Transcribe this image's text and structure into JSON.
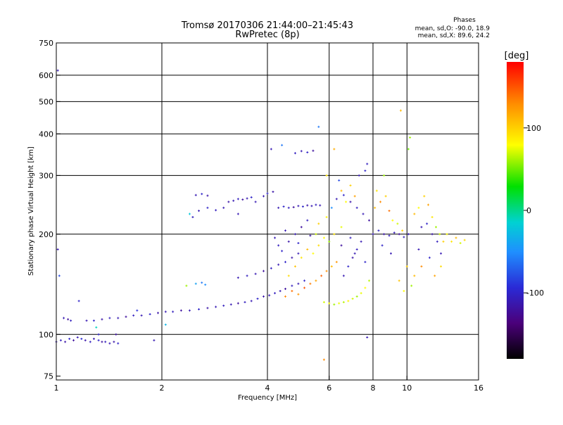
{
  "chart_data": {
    "type": "scatter",
    "title": "Tromsø 20170306 21:44:00–21:45:43",
    "subtitle": "RwPretec (8p)",
    "xlabel": "Frequency [MHz]",
    "ylabel": "Stationary phase Virtual Height [km]",
    "x_scale": "log",
    "y_scale": "log",
    "xlim": [
      1,
      16
    ],
    "ylim": [
      73,
      750
    ],
    "x_ticks": [
      {
        "value": 1,
        "label": "1"
      },
      {
        "value": 2,
        "label": "2"
      },
      {
        "value": 4,
        "label": "4"
      },
      {
        "value": 6,
        "label": "6"
      },
      {
        "value": 8,
        "label": "8"
      },
      {
        "value": 10,
        "label": "10"
      },
      {
        "value": 16,
        "label": "16"
      }
    ],
    "y_ticks": [
      {
        "value": 75,
        "label": "75"
      },
      {
        "value": 100,
        "label": "100"
      },
      {
        "value": 200,
        "label": "200"
      },
      {
        "value": 300,
        "label": "300"
      },
      {
        "value": 400,
        "label": "400"
      },
      {
        "value": 500,
        "label": "500"
      },
      {
        "value": 600,
        "label": "600"
      },
      {
        "value": 750,
        "label": "750"
      }
    ],
    "grid_x": [
      2,
      4,
      6,
      8,
      10
    ],
    "grid_y": [
      100,
      200,
      300,
      400,
      500,
      600
    ],
    "grid": true,
    "colorbar": {
      "label": "[deg]",
      "range": [
        -180,
        180
      ],
      "ticks": [
        {
          "value": 100,
          "label": "100"
        },
        {
          "value": 0,
          "label": "0"
        },
        {
          "value": -100,
          "label": "-100"
        }
      ]
    },
    "phase_stats": {
      "heading": "Phases",
      "line1": "mean, sd,O: -90.0, 18.9",
      "line2": "mean, sd,X: 89.6, 24.2"
    },
    "points": [
      {
        "f": 1.0,
        "h": 95,
        "p": -110
      },
      {
        "f": 1.03,
        "h": 96,
        "p": -105
      },
      {
        "f": 1.06,
        "h": 95,
        "p": -115
      },
      {
        "f": 1.09,
        "h": 97,
        "p": -100
      },
      {
        "f": 1.12,
        "h": 96,
        "p": -120
      },
      {
        "f": 1.15,
        "h": 98,
        "p": -110
      },
      {
        "f": 1.18,
        "h": 97,
        "p": -95
      },
      {
        "f": 1.21,
        "h": 96,
        "p": -115
      },
      {
        "f": 1.25,
        "h": 95,
        "p": -105
      },
      {
        "f": 1.28,
        "h": 97,
        "p": -110
      },
      {
        "f": 1.32,
        "h": 96,
        "p": -100
      },
      {
        "f": 1.35,
        "h": 95,
        "p": -120
      },
      {
        "f": 1.38,
        "h": 95,
        "p": -105
      },
      {
        "f": 1.42,
        "h": 94,
        "p": -110
      },
      {
        "f": 1.46,
        "h": 95,
        "p": -115
      },
      {
        "f": 1.5,
        "h": 94,
        "p": -100
      },
      {
        "f": 1.05,
        "h": 112,
        "p": -110
      },
      {
        "f": 1.08,
        "h": 111,
        "p": -120
      },
      {
        "f": 1.1,
        "h": 110,
        "p": -105
      },
      {
        "f": 1.22,
        "h": 110,
        "p": -110
      },
      {
        "f": 1.28,
        "h": 110,
        "p": -100
      },
      {
        "f": 1.35,
        "h": 111,
        "p": -115
      },
      {
        "f": 1.42,
        "h": 112,
        "p": -105
      },
      {
        "f": 1.5,
        "h": 112,
        "p": -110
      },
      {
        "f": 1.58,
        "h": 113,
        "p": -120
      },
      {
        "f": 1.66,
        "h": 114,
        "p": -105
      },
      {
        "f": 1.75,
        "h": 114,
        "p": -110
      },
      {
        "f": 1.85,
        "h": 115,
        "p": -100
      },
      {
        "f": 1.95,
        "h": 116,
        "p": -115
      },
      {
        "f": 2.05,
        "h": 117,
        "p": -110
      },
      {
        "f": 2.15,
        "h": 117,
        "p": -105
      },
      {
        "f": 2.27,
        "h": 118,
        "p": -120
      },
      {
        "f": 2.4,
        "h": 118,
        "p": -110
      },
      {
        "f": 2.55,
        "h": 119,
        "p": -100
      },
      {
        "f": 2.7,
        "h": 120,
        "p": -115
      },
      {
        "f": 2.85,
        "h": 121,
        "p": -110
      },
      {
        "f": 3.0,
        "h": 122,
        "p": -105
      },
      {
        "f": 3.15,
        "h": 123,
        "p": -110
      },
      {
        "f": 3.3,
        "h": 124,
        "p": -120
      },
      {
        "f": 3.45,
        "h": 125,
        "p": -105
      },
      {
        "f": 3.6,
        "h": 126,
        "p": -110
      },
      {
        "f": 3.75,
        "h": 128,
        "p": -100
      },
      {
        "f": 3.9,
        "h": 130,
        "p": -115
      },
      {
        "f": 4.05,
        "h": 131,
        "p": -110
      },
      {
        "f": 4.2,
        "h": 133,
        "p": -105
      },
      {
        "f": 4.35,
        "h": 135,
        "p": -110
      },
      {
        "f": 4.5,
        "h": 137,
        "p": -120
      },
      {
        "f": 4.7,
        "h": 140,
        "p": -105
      },
      {
        "f": 4.9,
        "h": 142,
        "p": -110
      },
      {
        "f": 5.1,
        "h": 145,
        "p": -100
      },
      {
        "f": 1.16,
        "h": 126,
        "p": -100
      },
      {
        "f": 1.3,
        "h": 105,
        "p": -10
      },
      {
        "f": 1.7,
        "h": 118,
        "p": -90
      },
      {
        "f": 1.48,
        "h": 100,
        "p": -120
      },
      {
        "f": 2.5,
        "h": 142,
        "p": -40
      },
      {
        "f": 2.6,
        "h": 143,
        "p": -60
      },
      {
        "f": 2.66,
        "h": 141,
        "p": -50
      },
      {
        "f": 3.3,
        "h": 148,
        "p": -110
      },
      {
        "f": 3.5,
        "h": 150,
        "p": -105
      },
      {
        "f": 3.7,
        "h": 152,
        "p": -110
      },
      {
        "f": 3.9,
        "h": 155,
        "p": -120
      },
      {
        "f": 4.1,
        "h": 158,
        "p": -105
      },
      {
        "f": 4.3,
        "h": 162,
        "p": -110
      },
      {
        "f": 4.5,
        "h": 165,
        "p": -100
      },
      {
        "f": 4.7,
        "h": 170,
        "p": -115
      },
      {
        "f": 4.9,
        "h": 175,
        "p": -110
      },
      {
        "f": 2.55,
        "h": 235,
        "p": -110
      },
      {
        "f": 2.7,
        "h": 240,
        "p": -100
      },
      {
        "f": 2.85,
        "h": 236,
        "p": -105
      },
      {
        "f": 3.0,
        "h": 240,
        "p": -110
      },
      {
        "f": 3.1,
        "h": 250,
        "p": -115
      },
      {
        "f": 3.2,
        "h": 252,
        "p": -110
      },
      {
        "f": 3.3,
        "h": 255,
        "p": -105
      },
      {
        "f": 3.4,
        "h": 254,
        "p": -120
      },
      {
        "f": 3.5,
        "h": 256,
        "p": -110
      },
      {
        "f": 3.6,
        "h": 258,
        "p": -100
      },
      {
        "f": 2.4,
        "h": 230,
        "p": -20
      },
      {
        "f": 2.45,
        "h": 225,
        "p": -105
      },
      {
        "f": 2.5,
        "h": 262,
        "p": -110
      },
      {
        "f": 2.6,
        "h": 264,
        "p": -100
      },
      {
        "f": 2.7,
        "h": 261,
        "p": -115
      },
      {
        "f": 4.3,
        "h": 240,
        "p": -110
      },
      {
        "f": 4.45,
        "h": 242,
        "p": -100
      },
      {
        "f": 4.6,
        "h": 240,
        "p": -105
      },
      {
        "f": 4.75,
        "h": 241,
        "p": -120
      },
      {
        "f": 4.9,
        "h": 243,
        "p": -110
      },
      {
        "f": 5.05,
        "h": 242,
        "p": -100
      },
      {
        "f": 5.2,
        "h": 244,
        "p": -115
      },
      {
        "f": 5.35,
        "h": 243,
        "p": -110
      },
      {
        "f": 5.5,
        "h": 245,
        "p": -105
      },
      {
        "f": 5.65,
        "h": 244,
        "p": -110
      },
      {
        "f": 3.9,
        "h": 260,
        "p": -110
      },
      {
        "f": 4.0,
        "h": 265,
        "p": -100
      },
      {
        "f": 4.15,
        "h": 268,
        "p": -115
      },
      {
        "f": 4.8,
        "h": 350,
        "p": -105
      },
      {
        "f": 5.0,
        "h": 355,
        "p": -110
      },
      {
        "f": 5.2,
        "h": 352,
        "p": -100
      },
      {
        "f": 5.4,
        "h": 356,
        "p": -120
      },
      {
        "f": 5.6,
        "h": 420,
        "p": -60
      },
      {
        "f": 4.1,
        "h": 360,
        "p": -110
      },
      {
        "f": 4.2,
        "h": 195,
        "p": -110
      },
      {
        "f": 4.3,
        "h": 185,
        "p": -105
      },
      {
        "f": 4.4,
        "h": 178,
        "p": -100
      },
      {
        "f": 4.6,
        "h": 190,
        "p": -115
      },
      {
        "f": 4.8,
        "h": 200,
        "p": -110
      },
      {
        "f": 5.0,
        "h": 210,
        "p": -120
      },
      {
        "f": 5.2,
        "h": 220,
        "p": -105
      },
      {
        "f": 4.5,
        "h": 205,
        "p": -110
      },
      {
        "f": 4.9,
        "h": 188,
        "p": -100
      },
      {
        "f": 5.3,
        "h": 198,
        "p": -115
      },
      {
        "f": 4.5,
        "h": 130,
        "p": 130
      },
      {
        "f": 4.7,
        "h": 135,
        "p": 140
      },
      {
        "f": 4.9,
        "h": 132,
        "p": 125
      },
      {
        "f": 5.1,
        "h": 138,
        "p": 150
      },
      {
        "f": 5.3,
        "h": 142,
        "p": 135
      },
      {
        "f": 5.5,
        "h": 145,
        "p": 120
      },
      {
        "f": 5.7,
        "h": 150,
        "p": 145
      },
      {
        "f": 5.9,
        "h": 155,
        "p": 130
      },
      {
        "f": 6.1,
        "h": 160,
        "p": 110
      },
      {
        "f": 6.3,
        "h": 165,
        "p": 125
      },
      {
        "f": 4.6,
        "h": 150,
        "p": 95
      },
      {
        "f": 4.8,
        "h": 160,
        "p": 105
      },
      {
        "f": 5.0,
        "h": 170,
        "p": 90
      },
      {
        "f": 5.2,
        "h": 180,
        "p": 110
      },
      {
        "f": 5.4,
        "h": 175,
        "p": 80
      },
      {
        "f": 5.6,
        "h": 185,
        "p": 95
      },
      {
        "f": 5.8,
        "h": 125,
        "p": 70
      },
      {
        "f": 6.0,
        "h": 124,
        "p": 80
      },
      {
        "f": 6.2,
        "h": 123,
        "p": 60
      },
      {
        "f": 6.4,
        "h": 124,
        "p": 75
      },
      {
        "f": 6.6,
        "h": 125,
        "p": 65
      },
      {
        "f": 6.8,
        "h": 126,
        "p": 85
      },
      {
        "f": 7.0,
        "h": 128,
        "p": 70
      },
      {
        "f": 7.2,
        "h": 130,
        "p": 60
      },
      {
        "f": 7.4,
        "h": 133,
        "p": 75
      },
      {
        "f": 7.6,
        "h": 138,
        "p": 80
      },
      {
        "f": 7.8,
        "h": 145,
        "p": 65
      },
      {
        "f": 5.5,
        "h": 200,
        "p": 70
      },
      {
        "f": 5.8,
        "h": 195,
        "p": 80
      },
      {
        "f": 6.0,
        "h": 190,
        "p": 60
      },
      {
        "f": 6.2,
        "h": 200,
        "p": 90
      },
      {
        "f": 6.5,
        "h": 210,
        "p": 75
      },
      {
        "f": 5.6,
        "h": 215,
        "p": 100
      },
      {
        "f": 5.9,
        "h": 225,
        "p": 85
      },
      {
        "f": 6.6,
        "h": 150,
        "p": -110
      },
      {
        "f": 6.8,
        "h": 160,
        "p": -100
      },
      {
        "f": 7.0,
        "h": 170,
        "p": -115
      },
      {
        "f": 7.2,
        "h": 180,
        "p": -105
      },
      {
        "f": 7.4,
        "h": 190,
        "p": -110
      },
      {
        "f": 6.5,
        "h": 185,
        "p": -120
      },
      {
        "f": 6.9,
        "h": 195,
        "p": -105
      },
      {
        "f": 7.1,
        "h": 175,
        "p": -110
      },
      {
        "f": 7.6,
        "h": 165,
        "p": -100
      },
      {
        "f": 6.3,
        "h": 255,
        "p": -110
      },
      {
        "f": 6.6,
        "h": 262,
        "p": -100
      },
      {
        "f": 6.9,
        "h": 250,
        "p": -115
      },
      {
        "f": 7.2,
        "h": 240,
        "p": -105
      },
      {
        "f": 7.5,
        "h": 230,
        "p": -110
      },
      {
        "f": 7.8,
        "h": 220,
        "p": -120
      },
      {
        "f": 7.3,
        "h": 300,
        "p": -110
      },
      {
        "f": 7.6,
        "h": 310,
        "p": -100
      },
      {
        "f": 7.7,
        "h": 325,
        "p": -105
      },
      {
        "f": 6.1,
        "h": 240,
        "p": -50
      },
      {
        "f": 6.4,
        "h": 290,
        "p": -80
      },
      {
        "f": 6.5,
        "h": 270,
        "p": 110
      },
      {
        "f": 6.7,
        "h": 250,
        "p": 80
      },
      {
        "f": 6.9,
        "h": 280,
        "p": 100
      },
      {
        "f": 7.1,
        "h": 260,
        "p": 120
      },
      {
        "f": 6.2,
        "h": 360,
        "p": 115
      },
      {
        "f": 5.9,
        "h": 300,
        "p": 90
      },
      {
        "f": 8.0,
        "h": 200,
        "p": -110
      },
      {
        "f": 8.3,
        "h": 205,
        "p": -100
      },
      {
        "f": 8.6,
        "h": 200,
        "p": -115
      },
      {
        "f": 8.9,
        "h": 198,
        "p": -105
      },
      {
        "f": 9.2,
        "h": 202,
        "p": -110
      },
      {
        "f": 9.5,
        "h": 200,
        "p": -120
      },
      {
        "f": 9.8,
        "h": 196,
        "p": -105
      },
      {
        "f": 10.1,
        "h": 200,
        "p": -110
      },
      {
        "f": 8.5,
        "h": 185,
        "p": -100
      },
      {
        "f": 9.0,
        "h": 175,
        "p": -110
      },
      {
        "f": 8.1,
        "h": 240,
        "p": 110
      },
      {
        "f": 8.4,
        "h": 250,
        "p": 130
      },
      {
        "f": 8.7,
        "h": 260,
        "p": 100
      },
      {
        "f": 8.9,
        "h": 235,
        "p": 140
      },
      {
        "f": 8.2,
        "h": 270,
        "p": 90
      },
      {
        "f": 8.6,
        "h": 300,
        "p": 60
      },
      {
        "f": 9.1,
        "h": 220,
        "p": 80
      },
      {
        "f": 9.4,
        "h": 215,
        "p": 70
      },
      {
        "f": 9.7,
        "h": 205,
        "p": 100
      },
      {
        "f": 9.6,
        "h": 470,
        "p": 110
      },
      {
        "f": 10.2,
        "h": 390,
        "p": 60
      },
      {
        "f": 10.1,
        "h": 360,
        "p": 50
      },
      {
        "f": 10.5,
        "h": 230,
        "p": 110
      },
      {
        "f": 10.8,
        "h": 240,
        "p": 80
      },
      {
        "f": 11.2,
        "h": 260,
        "p": 100
      },
      {
        "f": 11.5,
        "h": 245,
        "p": 120
      },
      {
        "f": 11.8,
        "h": 225,
        "p": 90
      },
      {
        "f": 12.1,
        "h": 210,
        "p": 60
      },
      {
        "f": 12.4,
        "h": 200,
        "p": 70
      },
      {
        "f": 12.7,
        "h": 190,
        "p": 100
      },
      {
        "f": 13.0,
        "h": 200,
        "p": 80
      },
      {
        "f": 13.4,
        "h": 190,
        "p": 90
      },
      {
        "f": 13.8,
        "h": 195,
        "p": 110
      },
      {
        "f": 14.2,
        "h": 188,
        "p": 70
      },
      {
        "f": 14.6,
        "h": 192,
        "p": 95
      },
      {
        "f": 11.0,
        "h": 210,
        "p": -110
      },
      {
        "f": 11.4,
        "h": 215,
        "p": -100
      },
      {
        "f": 11.8,
        "h": 200,
        "p": -115
      },
      {
        "f": 12.2,
        "h": 190,
        "p": -105
      },
      {
        "f": 10.8,
        "h": 180,
        "p": -110
      },
      {
        "f": 11.6,
        "h": 170,
        "p": -100
      },
      {
        "f": 12.5,
        "h": 175,
        "p": -110
      },
      {
        "f": 10.0,
        "h": 160,
        "p": 100
      },
      {
        "f": 10.5,
        "h": 150,
        "p": 110
      },
      {
        "f": 11.0,
        "h": 160,
        "p": 130
      },
      {
        "f": 12.0,
        "h": 150,
        "p": 120
      },
      {
        "f": 12.5,
        "h": 160,
        "p": 95
      },
      {
        "f": 9.5,
        "h": 145,
        "p": 105
      },
      {
        "f": 9.8,
        "h": 135,
        "p": 80
      },
      {
        "f": 10.3,
        "h": 140,
        "p": 60
      },
      {
        "f": 1.01,
        "h": 180,
        "p": -110
      },
      {
        "f": 1.02,
        "h": 150,
        "p": -80
      },
      {
        "f": 1.01,
        "h": 620,
        "p": -110
      },
      {
        "f": 1.32,
        "h": 100,
        "p": -100
      },
      {
        "f": 2.05,
        "h": 107,
        "p": -30
      },
      {
        "f": 2.35,
        "h": 140,
        "p": 60
      },
      {
        "f": 5.8,
        "h": 84,
        "p": 130
      },
      {
        "f": 7.7,
        "h": 98,
        "p": -110
      },
      {
        "f": 4.4,
        "h": 370,
        "p": -60
      },
      {
        "f": 3.3,
        "h": 230,
        "p": -110
      },
      {
        "f": 3.7,
        "h": 250,
        "p": -110
      },
      {
        "f": 1.9,
        "h": 96,
        "p": -110
      }
    ]
  }
}
